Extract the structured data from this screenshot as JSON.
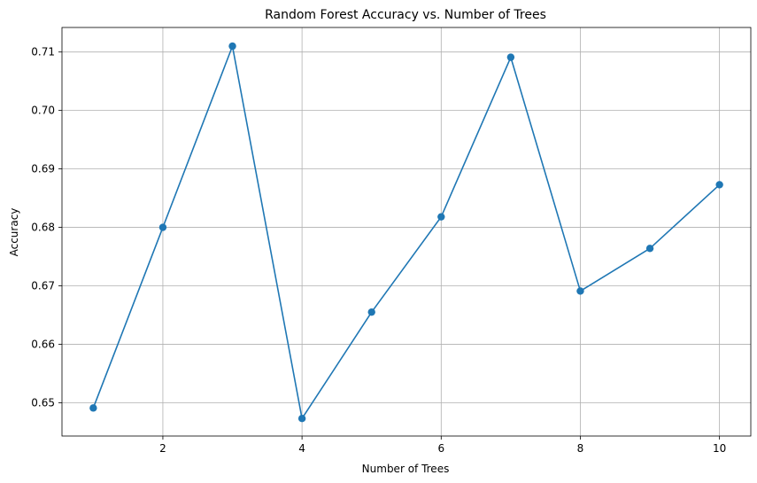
{
  "chart_data": {
    "type": "line",
    "title": "Random Forest Accuracy vs. Number of Trees",
    "xlabel": "Number of Trees",
    "ylabel": "Accuracy",
    "xlim": [
      0.55,
      10.45
    ],
    "ylim": [
      0.6443,
      0.7142
    ],
    "xticks": [
      2,
      4,
      6,
      8,
      10
    ],
    "xtick_labels": [
      "2",
      "4",
      "6",
      "8",
      "10"
    ],
    "yticks": [
      0.65,
      0.66,
      0.67,
      0.68,
      0.69,
      0.7,
      0.71
    ],
    "ytick_labels": [
      "0.65",
      "0.66",
      "0.67",
      "0.68",
      "0.69",
      "0.70",
      "0.71"
    ],
    "grid": true,
    "series": [
      {
        "color": "#1f77b4",
        "marker": "circle",
        "x": [
          1,
          2,
          3,
          4,
          5,
          6,
          7,
          8,
          9,
          10
        ],
        "y": [
          0.6491,
          0.68,
          0.711,
          0.6473,
          0.6655,
          0.6818,
          0.7091,
          0.6691,
          0.6764,
          0.6873
        ]
      }
    ]
  }
}
